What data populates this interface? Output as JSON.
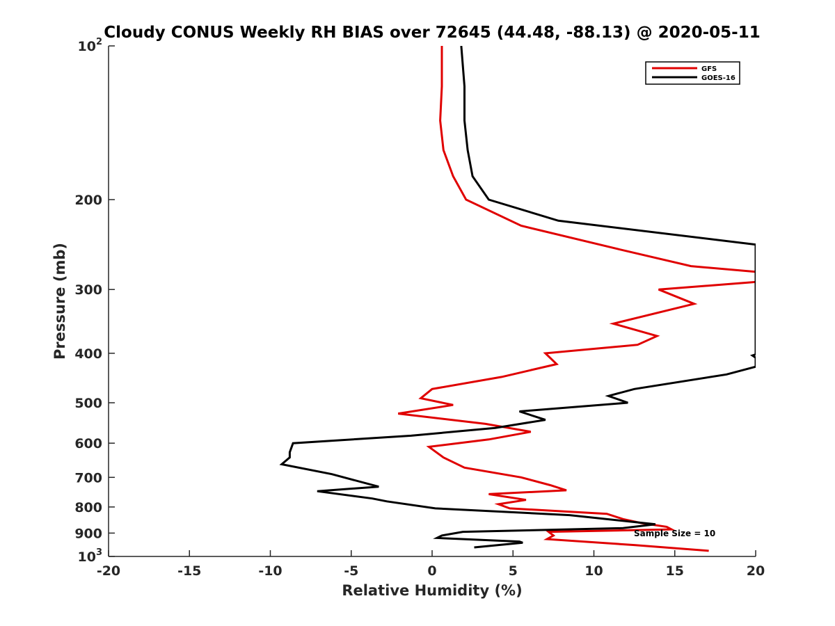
{
  "chart_data": {
    "type": "line",
    "title": "Cloudy CONUS Weekly RH BIAS over 72645 (44.48, -88.13) @ 2020-05-11",
    "xlabel": "Relative Humidity (%)",
    "ylabel": "Pressure (mb)",
    "xlim": [
      -20,
      20
    ],
    "ylim": [
      1000,
      100
    ],
    "yscale": "log",
    "y_reversed": true,
    "x_ticks": [
      -20,
      -15,
      -10,
      -5,
      0,
      5,
      10,
      15,
      20
    ],
    "x_tick_labels": [
      "-20",
      "-15",
      "-10",
      "-5",
      "0",
      "5",
      "10",
      "15",
      "20"
    ],
    "y_ticks": [
      100,
      200,
      300,
      400,
      500,
      600,
      700,
      800,
      900,
      1000
    ],
    "y_tick_labels": [
      {
        "base": "10",
        "exp": "2"
      },
      {
        "base": "200",
        "exp": ""
      },
      {
        "base": "300",
        "exp": ""
      },
      {
        "base": "400",
        "exp": ""
      },
      {
        "base": "500",
        "exp": ""
      },
      {
        "base": "600",
        "exp": ""
      },
      {
        "base": "700",
        "exp": ""
      },
      {
        "base": "800",
        "exp": ""
      },
      {
        "base": "900",
        "exp": ""
      },
      {
        "base": "10",
        "exp": "3"
      }
    ],
    "grid": false,
    "legend_position": "top-right",
    "series": [
      {
        "name": "GFS",
        "color": "#e00000",
        "points": [
          [
            0.6,
            100
          ],
          [
            0.6,
            120
          ],
          [
            0.5,
            140
          ],
          [
            0.7,
            160
          ],
          [
            1.3,
            180
          ],
          [
            2.1,
            200
          ],
          [
            5.5,
            225
          ],
          [
            11.5,
            250
          ],
          [
            16.0,
            270
          ],
          [
            20.0,
            277
          ],
          [
            20.0,
            290
          ],
          [
            14.0,
            300
          ],
          [
            16.2,
            320
          ],
          [
            11.2,
            350
          ],
          [
            13.9,
            370
          ],
          [
            12.7,
            385
          ],
          [
            7.0,
            400
          ],
          [
            7.7,
            420
          ],
          [
            4.3,
            445
          ],
          [
            0,
            470
          ],
          [
            -0.7,
            490
          ],
          [
            1.3,
            505
          ],
          [
            -2.1,
            525
          ],
          [
            3.3,
            550
          ],
          [
            6.1,
            570
          ],
          [
            3.5,
            590
          ],
          [
            -0.2,
            610
          ],
          [
            0.7,
            640
          ],
          [
            2.0,
            670
          ],
          [
            5.5,
            700
          ],
          [
            7.3,
            725
          ],
          [
            8.3,
            742
          ],
          [
            3.5,
            755
          ],
          [
            5.8,
            775
          ],
          [
            4.1,
            790
          ],
          [
            4.8,
            805
          ],
          [
            10.8,
            825
          ],
          [
            11.8,
            845
          ],
          [
            12.9,
            860
          ],
          [
            14.5,
            875
          ],
          [
            14.8,
            885
          ],
          [
            7.2,
            895
          ],
          [
            7.5,
            910
          ],
          [
            7.1,
            925
          ],
          [
            12.5,
            950
          ],
          [
            17.1,
            975
          ]
        ]
      },
      {
        "name": "GOES-16",
        "color": "#000000",
        "points": [
          [
            1.8,
            100
          ],
          [
            2.0,
            120
          ],
          [
            2.0,
            140
          ],
          [
            2.2,
            160
          ],
          [
            2.5,
            180
          ],
          [
            3.5,
            200
          ],
          [
            7.8,
            220
          ],
          [
            20.0,
            245
          ],
          [
            20.0,
            402
          ],
          [
            19.8,
            404
          ],
          [
            20.0,
            408
          ],
          [
            20.0,
            425
          ],
          [
            18.2,
            440
          ],
          [
            12.5,
            470
          ],
          [
            10.9,
            485
          ],
          [
            12.1,
            500
          ],
          [
            5.4,
            520
          ],
          [
            7.0,
            540
          ],
          [
            3.9,
            560
          ],
          [
            -1.3,
            580
          ],
          [
            -8.6,
            600
          ],
          [
            -8.8,
            625
          ],
          [
            -8.8,
            640
          ],
          [
            -9.3,
            660
          ],
          [
            -6.2,
            690
          ],
          [
            -3.3,
            730
          ],
          [
            -7.1,
            745
          ],
          [
            -3.7,
            770
          ],
          [
            -2.8,
            780
          ],
          [
            0.2,
            805
          ],
          [
            8.5,
            830
          ],
          [
            13.8,
            865
          ],
          [
            11.8,
            880
          ],
          [
            1.9,
            895
          ],
          [
            0.6,
            910
          ],
          [
            0.3,
            920
          ],
          [
            5.4,
            935
          ],
          [
            5.6,
            940
          ],
          [
            2.6,
            960
          ]
        ]
      }
    ],
    "legend": [
      {
        "label": "GFS",
        "color": "#e00000"
      },
      {
        "label": "GOES-16",
        "color": "#000000"
      }
    ],
    "annotation": "Sample Size = 10"
  }
}
